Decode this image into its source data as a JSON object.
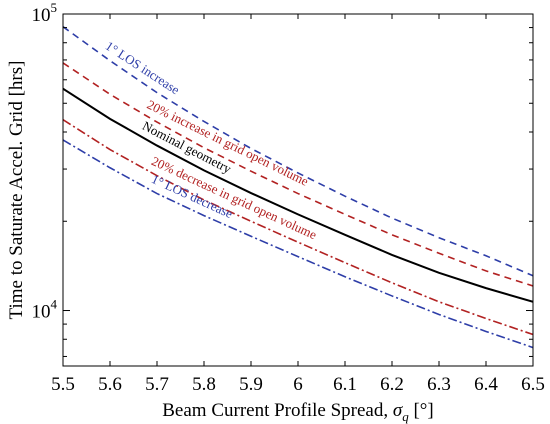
{
  "chart_data": {
    "type": "line",
    "xlabel": "Beam Current Profile Spread, ",
    "xlabel_symbol": "σ",
    "xlabel_subscript": "q",
    "xlabel_unit": " [°]",
    "ylabel": "Time to Saturate Accel. Grid [hrs]",
    "xlim": [
      5.5,
      6.5
    ],
    "ylim": [
      6500,
      100000
    ],
    "yscale": "log",
    "grid": false,
    "x_ticks": [
      "5.5",
      "5.6",
      "5.7",
      "5.8",
      "5.9",
      "6",
      "6.1",
      "6.2",
      "6.3",
      "6.4",
      "6.5"
    ],
    "y_ticks": [
      {
        "value": 10000,
        "base": "10",
        "exp": "4"
      },
      {
        "value": 100000,
        "base": "10",
        "exp": "5"
      }
    ],
    "x": [
      5.5,
      5.6,
      5.7,
      5.8,
      5.9,
      6.0,
      6.1,
      6.2,
      6.3,
      6.4,
      6.5
    ],
    "series": [
      {
        "name": "1° LOS increase",
        "color": "#2e3ea8",
        "dash": "7 5",
        "values": [
          90600,
          69600,
          54300,
          43400,
          35200,
          29100,
          24300,
          20500,
          17600,
          15300,
          13100
        ]
      },
      {
        "name": "20% increase in grid open volume",
        "color": "#b22222",
        "dash": "7 5",
        "values": [
          68400,
          53600,
          43200,
          35400,
          29500,
          24800,
          21100,
          18000,
          15600,
          13600,
          12100
        ]
      },
      {
        "name": "Nominal geometry",
        "color": "#000000",
        "dash": "",
        "values": [
          56000,
          44300,
          36000,
          29700,
          24900,
          21100,
          18000,
          15400,
          13400,
          11900,
          10700
        ]
      },
      {
        "name": "20% decrease in grid open volume",
        "color": "#b22222",
        "dash": "9 3 2 3",
        "values": [
          44000,
          34900,
          28500,
          23600,
          20000,
          17000,
          14500,
          12400,
          10700,
          9400,
          8300
        ]
      },
      {
        "name": "1° LOS decrease",
        "color": "#2e3ea8",
        "dash": "9 3 2 3",
        "values": [
          37600,
          30300,
          24800,
          20900,
          17800,
          15200,
          13000,
          11200,
          9700,
          8500,
          7500
        ]
      }
    ]
  }
}
